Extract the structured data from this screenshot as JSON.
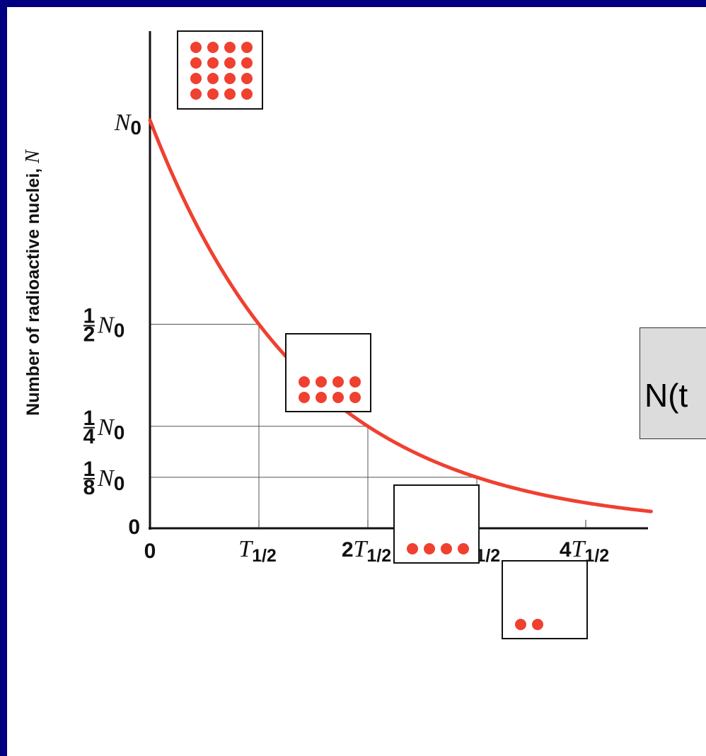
{
  "chart_data": {
    "type": "line",
    "title": "",
    "xlabel": "",
    "ylabel": "Number of radioactive nuclei, N",
    "x_ticks": [
      {
        "label": "0",
        "value": 0
      },
      {
        "label": "T1/2",
        "value": 1
      },
      {
        "label": "2T1/2",
        "value": 2
      },
      {
        "label": "3T1/2",
        "value": 3
      },
      {
        "label": "4T1/2",
        "value": 4
      }
    ],
    "y_ticks": [
      {
        "label": "0",
        "value": 0
      },
      {
        "label": "1/8 N0",
        "value": 0.125
      },
      {
        "label": "1/4 N0",
        "value": 0.25
      },
      {
        "label": "1/2 N0",
        "value": 0.5
      },
      {
        "label": "N0",
        "value": 1
      }
    ],
    "series": [
      {
        "values_formula": "N0 * 2^(-t/T1/2)",
        "x": [
          0,
          0.5,
          1,
          1.5,
          2,
          2.5,
          3,
          3.5,
          4,
          4.6
        ],
        "y": [
          1,
          0.707,
          0.5,
          0.354,
          0.25,
          0.177,
          0.125,
          0.088,
          0.0625,
          0.041
        ],
        "color": "#ef4030"
      }
    ],
    "guide_points": [
      {
        "x": 1,
        "y": 0.5
      },
      {
        "x": 2,
        "y": 0.25
      },
      {
        "x": 3,
        "y": 0.125
      }
    ],
    "xlim": [
      0,
      4.6
    ],
    "ylim": [
      0,
      1
    ],
    "grid": false,
    "nuclei_boxes": [
      {
        "at_x": 0,
        "dots": 16
      },
      {
        "at_x": 1,
        "dots": 8
      },
      {
        "at_x": 2,
        "dots": 4
      },
      {
        "at_x": 3,
        "dots": 2
      }
    ]
  },
  "equation_fragment": "N(t"
}
